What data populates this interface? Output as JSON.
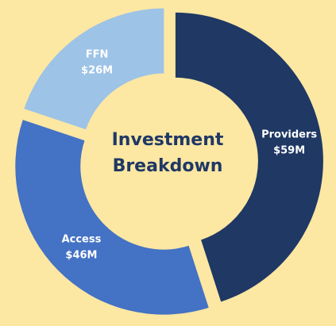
{
  "chart_data": {
    "type": "donut",
    "title": "Investment Breakdown",
    "categories": [
      "Providers",
      "Access",
      "FFN"
    ],
    "values": [
      59,
      46,
      26
    ],
    "value_labels": [
      "$59M",
      "$46M",
      "$26M"
    ],
    "colors": [
      "#1f3864",
      "#4472c4",
      "#9dc3e6"
    ]
  }
}
